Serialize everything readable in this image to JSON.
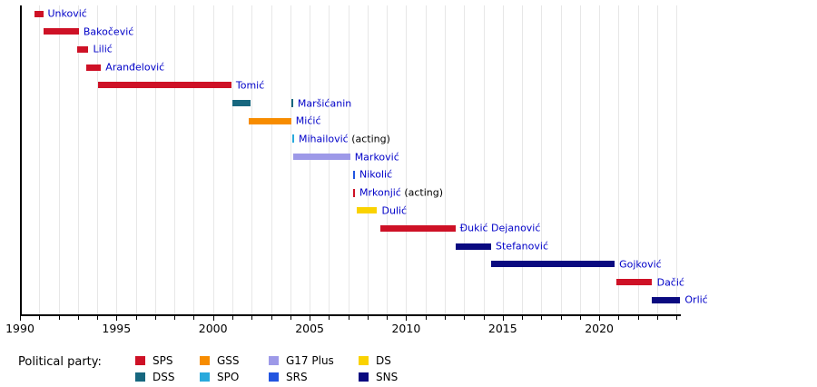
{
  "chart_data": {
    "type": "bar",
    "subtype": "timeline-gantt",
    "description": "Terms of office timeline with one horizontal bar per person, colored by political party; very short terms drawn as small vertical ticks",
    "x_axis": {
      "start": 1990,
      "end": 2024.2,
      "minor_tick_every": 1,
      "labeled_ticks": [
        1990,
        1995,
        2000,
        2005,
        2010,
        2015,
        2020
      ],
      "tick_labels": [
        "1990",
        "1995",
        "2000",
        "2005",
        "2010",
        "2015",
        "2020"
      ],
      "grid": "light vertical gridline every year"
    },
    "parties": {
      "SPS": "#CE1126",
      "DSS": "#17677F",
      "GSS": "#F78C00",
      "SPO": "#29A9DC",
      "G17 Plus": "#9D99E8",
      "SRS": "#2255E0",
      "DS": "#FAD201",
      "SNS": "#0A0A80"
    },
    "people": [
      {
        "name": "Unković",
        "party": "SPS",
        "terms": [
          {
            "start": 1990.75,
            "end": 1991.2
          }
        ]
      },
      {
        "name": "Bakočević",
        "party": "SPS",
        "terms": [
          {
            "start": 1991.2,
            "end": 1993.05
          }
        ]
      },
      {
        "name": "Lilić",
        "party": "SPS",
        "terms": [
          {
            "start": 1992.95,
            "end": 1993.55
          }
        ]
      },
      {
        "name": "Aranđelović",
        "party": "SPS",
        "terms": [
          {
            "start": 1993.45,
            "end": 1994.2
          }
        ]
      },
      {
        "name": "Tomić",
        "party": "SPS",
        "terms": [
          {
            "start": 1994.05,
            "end": 2000.95
          }
        ]
      },
      {
        "name": "Maršićanin",
        "party": "DSS",
        "terms": [
          {
            "start": 2001.0,
            "end": 2001.95
          },
          {
            "at": 2004.1
          }
        ]
      },
      {
        "name": "Mićić",
        "party": "GSS",
        "terms": [
          {
            "start": 2001.85,
            "end": 2004.05
          }
        ]
      },
      {
        "name": "Mihailović",
        "suffix": "(acting)",
        "party": "SPO",
        "terms": [
          {
            "at": 2004.15
          }
        ]
      },
      {
        "name": "Marković",
        "party": "G17 Plus",
        "terms": [
          {
            "start": 2004.15,
            "end": 2007.1
          }
        ]
      },
      {
        "name": "Nikolić",
        "party": "SRS",
        "terms": [
          {
            "at": 2007.3
          }
        ]
      },
      {
        "name": "Mrkonjić",
        "suffix": "(acting)",
        "party": "SPS",
        "terms": [
          {
            "at": 2007.3
          }
        ]
      },
      {
        "name": "Dulić",
        "party": "DS",
        "terms": [
          {
            "start": 2007.45,
            "end": 2008.5
          }
        ]
      },
      {
        "name": "Đukić Dejanović",
        "party": "SPS",
        "terms": [
          {
            "start": 2008.65,
            "end": 2012.55
          }
        ]
      },
      {
        "name": "Stefanović",
        "party": "SNS",
        "terms": [
          {
            "start": 2012.55,
            "end": 2014.4
          }
        ]
      },
      {
        "name": "Gojković",
        "party": "SNS",
        "terms": [
          {
            "start": 2014.4,
            "end": 2020.8
          }
        ]
      },
      {
        "name": "Dačić",
        "party": "SPS",
        "terms": [
          {
            "start": 2020.9,
            "end": 2022.75
          }
        ]
      },
      {
        "name": "Orlić",
        "party": "SNS",
        "terms": [
          {
            "start": 2022.7,
            "end": 2024.2
          }
        ]
      }
    ]
  },
  "legend": {
    "title": "Political party:",
    "columns": [
      [
        {
          "label": "SPS",
          "color": "#CE1126"
        },
        {
          "label": "DSS",
          "color": "#17677F"
        }
      ],
      [
        {
          "label": "GSS",
          "color": "#F78C00"
        },
        {
          "label": "SPO",
          "color": "#29A9DC"
        }
      ],
      [
        {
          "label": "G17 Plus",
          "color": "#9D99E8"
        },
        {
          "label": "SRS",
          "color": "#2255E0"
        }
      ],
      [
        {
          "label": "DS",
          "color": "#FAD201"
        },
        {
          "label": "SNS",
          "color": "#0A0A80"
        }
      ]
    ]
  },
  "colors": {
    "label_text": "#0000C8",
    "axis": "#000000",
    "gridline": "#E7E7E7",
    "background": "#FFFFFF"
  }
}
